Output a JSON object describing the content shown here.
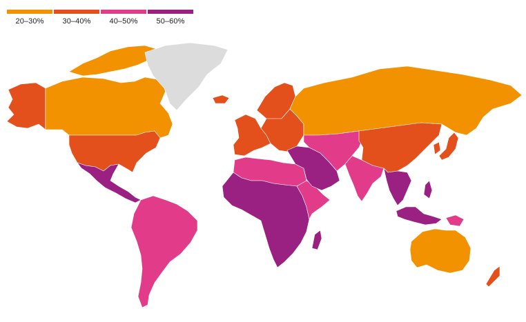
{
  "legend": {
    "items": [
      {
        "label": "20–30%",
        "color": "#f39200"
      },
      {
        "label": "30–40%",
        "color": "#e4501c"
      },
      {
        "label": "40–50%",
        "color": "#e23b8a"
      },
      {
        "label": "50–60%",
        "color": "#9a2082"
      }
    ]
  },
  "no_data_color": "#dcdcdc",
  "regions": [
    {
      "name": "alaska",
      "class": 1
    },
    {
      "name": "canada",
      "class": 0
    },
    {
      "name": "canadian-arctic-islands",
      "class": 0
    },
    {
      "name": "greenland",
      "class": -1
    },
    {
      "name": "iceland",
      "class": 1
    },
    {
      "name": "usa",
      "class": 1
    },
    {
      "name": "mexico-central-america",
      "class": 3
    },
    {
      "name": "south-america",
      "class": 2
    },
    {
      "name": "western-europe",
      "class": 1
    },
    {
      "name": "scandinavia",
      "class": 1
    },
    {
      "name": "eastern-europe",
      "class": 1
    },
    {
      "name": "russia",
      "class": 0
    },
    {
      "name": "north-africa",
      "class": 2
    },
    {
      "name": "sub-saharan-africa",
      "class": 3
    },
    {
      "name": "east-africa-horn",
      "class": 2
    },
    {
      "name": "madagascar",
      "class": 3
    },
    {
      "name": "middle-east",
      "class": 3
    },
    {
      "name": "central-asia",
      "class": 2
    },
    {
      "name": "india",
      "class": 2
    },
    {
      "name": "china-mongolia",
      "class": 1
    },
    {
      "name": "japan",
      "class": 1
    },
    {
      "name": "korea",
      "class": 1
    },
    {
      "name": "southeast-asia",
      "class": 3
    },
    {
      "name": "indonesia",
      "class": 3
    },
    {
      "name": "papua-new-guinea",
      "class": 2
    },
    {
      "name": "philippines",
      "class": 3
    },
    {
      "name": "australia",
      "class": 0
    },
    {
      "name": "new-zealand",
      "class": 1
    }
  ]
}
